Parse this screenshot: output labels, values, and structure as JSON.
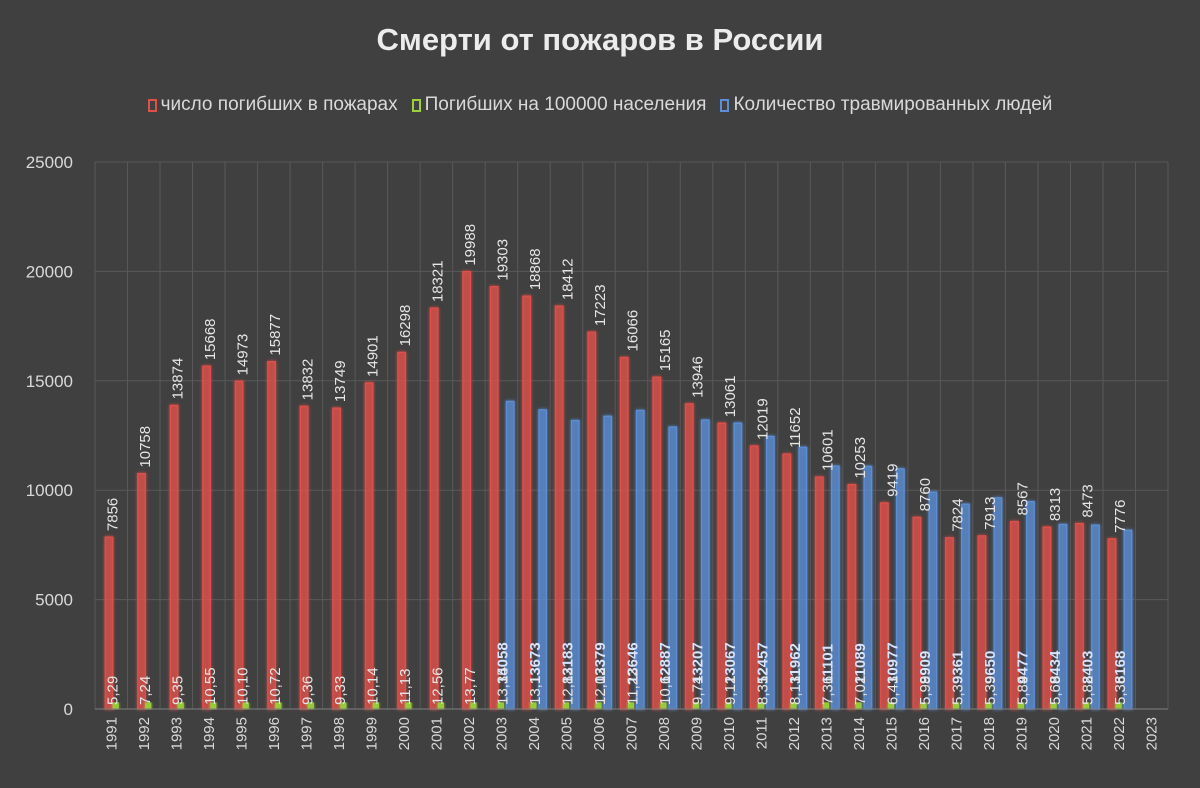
{
  "chart_data": {
    "type": "bar",
    "title": "Смерти от пожаров в России",
    "categories": [
      "1991",
      "1992",
      "1993",
      "1994",
      "1995",
      "1996",
      "1997",
      "1998",
      "1999",
      "2000",
      "2001",
      "2002",
      "2003",
      "2004",
      "2005",
      "2006",
      "2007",
      "2008",
      "2009",
      "2010",
      "2011",
      "2012",
      "2013",
      "2014",
      "2015",
      "2016",
      "2017",
      "2018",
      "2019",
      "2020",
      "2021",
      "2022",
      "2023"
    ],
    "series": [
      {
        "name": "число погибших в пожарах",
        "color": "#e0504a",
        "values": [
          7856,
          10758,
          13874,
          15668,
          14973,
          15877,
          13832,
          13749,
          14901,
          16298,
          18321,
          19988,
          19303,
          18868,
          18412,
          17223,
          16066,
          15165,
          13946,
          13061,
          12019,
          11652,
          10601,
          10253,
          9419,
          8760,
          7824,
          7913,
          8567,
          8313,
          8473,
          7776,
          null
        ],
        "labels": [
          "7856",
          "10758",
          "13874",
          "15668",
          "14973",
          "15877",
          "13832",
          "13749",
          "14901",
          "16298",
          "18321",
          "19988",
          "19303",
          "18868",
          "18412",
          "17223",
          "16066",
          "15165",
          "13946",
          "13061",
          "12019",
          "11652",
          "10601",
          "10253",
          "9419",
          "8760",
          "7824",
          "7913",
          "8567",
          "8313",
          "8473",
          "7776",
          ""
        ]
      },
      {
        "name": "Погибших на 100000 населения",
        "color": "#9bd13a",
        "values": [
          5.29,
          7.24,
          9.35,
          10.55,
          10.1,
          10.72,
          9.36,
          9.33,
          10.14,
          11.13,
          12.56,
          13.77,
          13.35,
          13.1,
          12.82,
          12.02,
          11.22,
          10.6,
          9.74,
          9.12,
          8.35,
          8.13,
          7.36,
          7.02,
          6.43,
          5.98,
          5.3,
          5.39,
          5.84,
          5.69,
          5.82,
          5.36,
          null
        ],
        "labels": [
          "5,29",
          "7,24",
          "9,35",
          "10,55",
          "10,10",
          "10,72",
          "9,36",
          "9,33",
          "10,14",
          "11,13",
          "12,56",
          "13,77",
          "13,35",
          "13,1",
          "12,82",
          "12,02",
          "11,22",
          "10,6",
          "9,74",
          "9,12",
          "8,35",
          "8,13",
          "7,36",
          "7,02",
          "6,43",
          "5,98",
          "5,3",
          "5,39",
          "5,84",
          "5,69",
          "5,82",
          "5,36",
          ""
        ]
      },
      {
        "name": "Количество травмированных людей",
        "color": "#5b8ed6",
        "values": [
          null,
          null,
          null,
          null,
          null,
          null,
          null,
          null,
          null,
          null,
          null,
          null,
          14058,
          13673,
          13183,
          13379,
          13646,
          12887,
          13207,
          13067,
          12457,
          11962,
          11101,
          11089,
          10977,
          9909,
          9361,
          9650,
          9477,
          8434,
          8403,
          8168,
          null
        ],
        "labels": [
          "",
          "",
          "",
          "",
          "",
          "",
          "",
          "",
          "",
          "",
          "",
          "",
          "14058",
          "13673",
          "13183",
          "13379",
          "13646",
          "12887",
          "13207",
          "13067",
          "12457",
          "11962",
          "11101",
          "11089",
          "10977",
          "9909",
          "9361",
          "9650",
          "9477",
          "8434",
          "8403",
          "8168",
          ""
        ]
      }
    ],
    "ylim": [
      0,
      25000
    ],
    "yticks": [
      "0",
      "5000",
      "10000",
      "15000",
      "20000",
      "25000"
    ],
    "grid": true,
    "legend_position": "top",
    "xlabel": "",
    "ylabel": ""
  }
}
